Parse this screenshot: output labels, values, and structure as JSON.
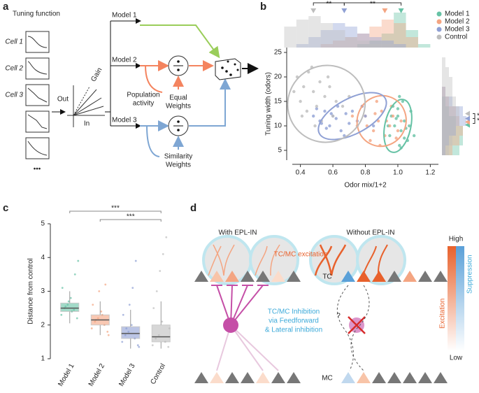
{
  "panel_a": {
    "panel_label": "a",
    "tuning_title": "Tuning function",
    "cells": [
      "Cell 1",
      "Cell 2",
      "Cell 3"
    ],
    "ellipsis": "•••",
    "out_label": "Out",
    "in_label": "In",
    "gain_label": "Gain",
    "models": [
      "Model 1",
      "Model 2",
      "Model 3"
    ],
    "population_activity": [
      "Population",
      "activity"
    ],
    "equal_weights": [
      "Equal",
      "Weights"
    ],
    "similarity_weights": [
      "Similarity",
      "Weights"
    ]
  },
  "chart_data": [
    {
      "type": "scatter",
      "panel_label": "b",
      "xlabel": "Odor mix/1+2",
      "ylabel": "Tuning width (odors)",
      "xlim": [
        0.35,
        1.25
      ],
      "ylim": [
        3,
        26
      ],
      "xticks": [
        0.4,
        0.6,
        0.8,
        {
          "value": 1,
          "label": "1.0"
        },
        1.2
      ],
      "yticks": [
        5,
        10,
        15,
        20,
        25
      ],
      "hist_xbins": [
        0.3,
        0.375,
        0.45,
        0.525,
        0.6,
        0.675,
        0.75,
        0.825,
        0.9,
        0.975,
        1.05,
        1.125,
        1.2
      ],
      "hist_ybins": [
        4,
        6,
        8,
        10,
        12,
        14,
        16,
        18,
        20,
        22,
        24
      ],
      "series": [
        {
          "name": "Model 1",
          "color": "#66c2a5",
          "mean_x": 1.02,
          "mean_y": 10.2,
          "ellipse": {
            "cx": 1.0,
            "cy": 10,
            "rx": 0.08,
            "ry": 5.5,
            "angle": 12
          },
          "hist_x": [
            0,
            0,
            0,
            0,
            0,
            0,
            1,
            2,
            4,
            10,
            5,
            1
          ],
          "hist_y": [
            5,
            6,
            6,
            4,
            2,
            1,
            0,
            0,
            0,
            0
          ],
          "points": [
            [
              0.95,
              8
            ],
            [
              0.98,
              10
            ],
            [
              1.0,
              12
            ],
            [
              1.02,
              9
            ],
            [
              1.04,
              11
            ],
            [
              1.06,
              7
            ],
            [
              1.08,
              13
            ],
            [
              0.97,
              14
            ],
            [
              1.01,
              6
            ],
            [
              1.03,
              15
            ],
            [
              1.05,
              9.5
            ],
            [
              0.99,
              11.5
            ],
            [
              1.07,
              10
            ],
            [
              0.96,
              12
            ],
            [
              1.1,
              8
            ],
            [
              1.02,
              5.5
            ],
            [
              0.94,
              10
            ],
            [
              1.0,
              13.5
            ],
            [
              1.04,
              7.5
            ],
            [
              1.01,
              16
            ]
          ]
        },
        {
          "name": "Model 2",
          "color": "#f4a582",
          "mean_x": 0.92,
          "mean_y": 10.8,
          "ellipse": {
            "cx": 0.9,
            "cy": 11,
            "rx": 0.15,
            "ry": 5.2,
            "angle": 22
          },
          "hist_x": [
            0,
            0,
            0,
            1,
            2,
            3,
            4,
            6,
            8,
            7,
            3,
            0
          ],
          "hist_y": [
            3,
            5,
            6,
            5,
            4,
            2,
            1,
            0,
            0,
            0
          ],
          "points": [
            [
              0.75,
              10
            ],
            [
              0.8,
              12
            ],
            [
              0.85,
              9
            ],
            [
              0.88,
              11
            ],
            [
              0.9,
              13
            ],
            [
              0.92,
              8
            ],
            [
              0.95,
              10
            ],
            [
              0.78,
              14
            ],
            [
              0.83,
              7
            ],
            [
              0.97,
              12
            ],
            [
              1.0,
              9
            ],
            [
              0.87,
              15
            ],
            [
              0.93,
              11
            ],
            [
              0.72,
              12
            ],
            [
              1.02,
              11
            ],
            [
              0.89,
              6
            ],
            [
              0.96,
              14
            ],
            [
              0.81,
              10
            ],
            [
              0.99,
              7.5
            ],
            [
              0.86,
              12.5
            ]
          ]
        },
        {
          "name": "Model 3",
          "color": "#8fa0d4",
          "mean_x": 0.67,
          "mean_y": 11.5,
          "ellipse": {
            "cx": 0.72,
            "cy": 12,
            "rx": 0.23,
            "ry": 3.6,
            "angle": -28
          },
          "hist_x": [
            0,
            1,
            3,
            5,
            7,
            6,
            4,
            3,
            2,
            1,
            0,
            0
          ],
          "hist_y": [
            1,
            2,
            4,
            7,
            6,
            3,
            1,
            0,
            0,
            0
          ],
          "points": [
            [
              0.48,
              12
            ],
            [
              0.52,
              11
            ],
            [
              0.55,
              13
            ],
            [
              0.58,
              10
            ],
            [
              0.6,
              12
            ],
            [
              0.62,
              11.5
            ],
            [
              0.65,
              9
            ],
            [
              0.5,
              13.5
            ],
            [
              0.68,
              12.5
            ],
            [
              0.7,
              10.5
            ],
            [
              0.56,
              9.5
            ],
            [
              0.72,
              13
            ],
            [
              0.75,
              11
            ],
            [
              0.63,
              14
            ],
            [
              0.8,
              12
            ],
            [
              0.85,
              10
            ],
            [
              0.53,
              10.5
            ],
            [
              0.67,
              8
            ],
            [
              0.78,
              14
            ],
            [
              0.59,
              12.5
            ]
          ]
        },
        {
          "name": "Control",
          "color": "#bdbdbd",
          "mean_x": 0.48,
          "mean_y": 12.5,
          "ellipse": {
            "cx": 0.56,
            "cy": 14.5,
            "rx": 0.24,
            "ry": 7.8,
            "angle": -35
          },
          "hist_x": [
            6,
            8,
            9,
            7,
            5,
            3,
            2,
            1,
            1,
            0,
            0,
            0
          ],
          "hist_y": [
            2,
            3,
            4,
            5,
            5,
            4,
            3,
            3,
            2,
            1
          ],
          "points": [
            [
              0.38,
              20
            ],
            [
              0.42,
              18
            ],
            [
              0.45,
              21
            ],
            [
              0.4,
              15
            ],
            [
              0.48,
              17
            ],
            [
              0.52,
              19
            ],
            [
              0.44,
              13
            ],
            [
              0.55,
              16
            ],
            [
              0.5,
              14
            ],
            [
              0.58,
              18
            ],
            [
              0.62,
              15
            ],
            [
              0.47,
              22
            ],
            [
              0.36,
              17
            ],
            [
              0.6,
              12
            ],
            [
              0.53,
              11
            ],
            [
              0.41,
              12
            ],
            [
              0.66,
              14
            ],
            [
              0.57,
              20
            ],
            [
              0.49,
              10
            ],
            [
              0.7,
              16
            ]
          ]
        }
      ],
      "significance_x": [
        {
          "label": "**",
          "from": 0.48,
          "to": 0.67
        },
        {
          "label": "**",
          "from": 0.67,
          "to": 1.02
        }
      ],
      "significance_y": [
        {
          "label": "*",
          "from": 12.5,
          "to": 11.5
        },
        {
          "label": "*",
          "from": 11.5,
          "to": 10.5
        }
      ]
    },
    {
      "type": "box",
      "panel_label": "c",
      "ylabel": "Distance from control",
      "categories": [
        "Model 1",
        "Model 2",
        "Model 3",
        "Control"
      ],
      "colors": [
        "#66c2a5",
        "#f4a582",
        "#8fa0d4",
        "#bdbdbd"
      ],
      "ylim": [
        1,
        5
      ],
      "yticks": [
        1,
        2,
        3,
        4,
        5
      ],
      "boxes": [
        {
          "min": 2.05,
          "q1": 2.4,
          "median": 2.5,
          "q3": 2.65,
          "max": 3.0
        },
        {
          "min": 1.7,
          "q1": 2.0,
          "median": 2.15,
          "q3": 2.3,
          "max": 2.7
        },
        {
          "min": 1.3,
          "q1": 1.6,
          "median": 1.75,
          "q3": 1.95,
          "max": 2.45
        },
        {
          "min": 1.3,
          "q1": 1.5,
          "median": 1.65,
          "q3": 2.0,
          "max": 2.7
        }
      ],
      "points": [
        [
          2.3,
          2.5,
          2.6,
          2.8,
          2.45,
          2.2,
          3.1,
          2.55,
          2.7,
          2.4,
          3.5,
          3.9
        ],
        [
          1.9,
          2.1,
          2.2,
          2.4,
          2.0,
          1.8,
          2.6,
          2.15,
          3.0,
          2.3,
          3.2,
          1.7
        ],
        [
          1.5,
          1.7,
          1.8,
          2.0,
          1.6,
          1.4,
          2.3,
          1.9,
          2.6,
          3.1,
          3.9,
          1.35
        ],
        [
          1.4,
          1.6,
          1.7,
          2.1,
          1.5,
          1.35,
          2.5,
          3.0,
          3.6,
          4.1,
          4.6,
          1.9
        ]
      ],
      "significance": [
        {
          "label": "***",
          "from": 0,
          "to": 3
        },
        {
          "label": "***",
          "from": 1,
          "to": 3
        }
      ]
    }
  ],
  "panel_d": {
    "panel_label": "d",
    "with_title": "With EPL-IN",
    "without_title": "Without EPL-IN",
    "excitation_label": "TC/MC excitation",
    "tc": "TC",
    "mc": "MC",
    "inhibition_label": [
      "TC/MC Inhibition",
      "via Feedforward",
      "& Lateral inhibition"
    ],
    "question": "?",
    "scale_high": "High",
    "scale_low": "Low",
    "scale_excitation": "Excitation",
    "scale_suppression": "Suppression"
  }
}
